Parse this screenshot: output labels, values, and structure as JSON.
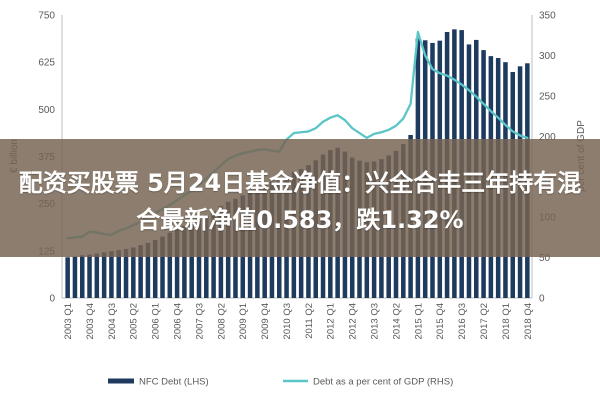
{
  "chart_data": {
    "type": "bar",
    "categories": [
      "2003 Q1",
      "2003 Q2",
      "2003 Q3",
      "2003 Q4",
      "2004 Q1",
      "2004 Q2",
      "2004 Q3",
      "2004 Q4",
      "2005 Q1",
      "2005 Q2",
      "2005 Q3",
      "2005 Q4",
      "2006 Q1",
      "2006 Q2",
      "2006 Q3",
      "2006 Q4",
      "2007 Q1",
      "2007 Q2",
      "2007 Q3",
      "2007 Q4",
      "2008 Q1",
      "2008 Q2",
      "2008 Q3",
      "2008 Q4",
      "2009 Q1",
      "2009 Q2",
      "2009 Q3",
      "2009 Q4",
      "2010 Q1",
      "2010 Q2",
      "2010 Q3",
      "2010 Q4",
      "2011 Q1",
      "2011 Q2",
      "2011 Q3",
      "2011 Q4",
      "2012 Q1",
      "2012 Q2",
      "2012 Q3",
      "2012 Q4",
      "2013 Q1",
      "2013 Q2",
      "2013 Q3",
      "2013 Q4",
      "2014 Q1",
      "2014 Q2",
      "2014 Q3",
      "2014 Q4",
      "2015 Q1",
      "2015 Q2",
      "2015 Q3",
      "2015 Q4",
      "2016 Q1",
      "2016 Q2",
      "2016 Q3",
      "2016 Q4",
      "2017 Q1",
      "2017 Q2",
      "2017 Q3",
      "2017 Q4",
      "2018 Q1",
      "2018 Q2",
      "2018 Q3",
      "2018 Q4"
    ],
    "series": [
      {
        "name": "NFC Debt (LHS)",
        "type": "bar",
        "axis": "left",
        "color": "#1f3a5f",
        "values": [
          108,
          110,
          113,
          115,
          118,
          121,
          124,
          127,
          130,
          134,
          140,
          146,
          154,
          163,
          173,
          182,
          191,
          199,
          207,
          218,
          230,
          244,
          255,
          263,
          272,
          281,
          290,
          300,
          308,
          316,
          325,
          334,
          342,
          352,
          365,
          380,
          392,
          398,
          388,
          372,
          364,
          360,
          362,
          368,
          378,
          390,
          408,
          432,
          688,
          683,
          676,
          682,
          705,
          712,
          710,
          672,
          684,
          657,
          641,
          636,
          625,
          599,
          614,
          622
        ]
      },
      {
        "name": "Debt as a per cent of GDP (RHS)",
        "type": "line",
        "axis": "right",
        "color": "#5cc5c8",
        "values": [
          74,
          75,
          76,
          82,
          81,
          79,
          78,
          83,
          86,
          90,
          94,
          99,
          105,
          110,
          115,
          121,
          127,
          133,
          140,
          148,
          156,
          164,
          172,
          176,
          179,
          181,
          183,
          184,
          182,
          181,
          196,
          204,
          205,
          206,
          210,
          218,
          223,
          226,
          220,
          210,
          204,
          198,
          203,
          205,
          208,
          213,
          222,
          240,
          329,
          300,
          283,
          278,
          275,
          270,
          264,
          257,
          249,
          240,
          231,
          223,
          214,
          206,
          201,
          198
        ]
      }
    ],
    "y_left": {
      "label": "€ billion",
      "min": 0,
      "max": 750,
      "ticks": [
        0,
        125,
        250,
        375,
        500,
        625,
        750
      ]
    },
    "y_right": {
      "label": "per cent of GDP",
      "min": 0,
      "max": 350,
      "ticks": [
        0,
        50,
        100,
        150,
        200,
        250,
        300,
        350
      ]
    },
    "grid": false,
    "legend": "bottom"
  },
  "overlay": {
    "line1": "配资买股票 5月24日基金净值：兴全合丰三年持有混",
    "line2": "合最新净值0.583，跌1.32%"
  }
}
